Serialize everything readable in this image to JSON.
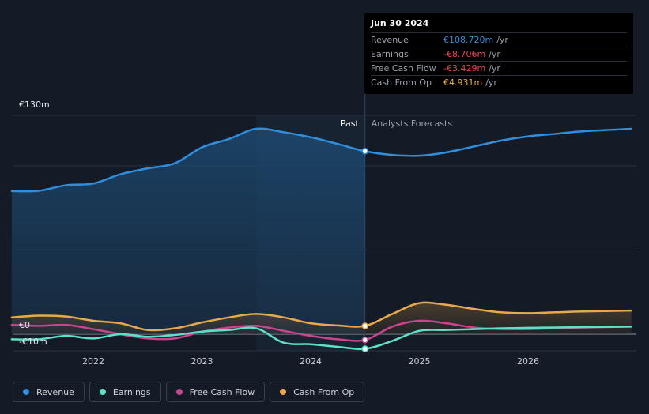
{
  "chart_data": {
    "type": "line",
    "y_unit": "€m",
    "ylim": [
      -10,
      130
    ],
    "y_tick_labels": [
      {
        "value": 130,
        "label": "€130m"
      },
      {
        "value": 0,
        "label": "€0"
      },
      {
        "value": -10,
        "label": "-€10m"
      }
    ],
    "x_tick_labels": [
      {
        "value": 2022.0,
        "label": "2022"
      },
      {
        "value": 2023.0,
        "label": "2023"
      },
      {
        "value": 2024.0,
        "label": "2024"
      },
      {
        "value": 2025.0,
        "label": "2025"
      },
      {
        "value": 2026.0,
        "label": "2026"
      }
    ],
    "xlim": [
      2021.0,
      2026.95
    ],
    "divider_x": 2024.5,
    "highlight_start_x": 2023.5,
    "past_label": "Past",
    "forecast_label": "Analysts Forecasts",
    "series": [
      {
        "name": "Revenue",
        "color": "#2f8fde",
        "points": [
          [
            2021.25,
            85
          ],
          [
            2021.5,
            85.2
          ],
          [
            2021.75,
            88.5
          ],
          [
            2022.0,
            89.5
          ],
          [
            2022.25,
            95
          ],
          [
            2022.5,
            98.5
          ],
          [
            2022.75,
            101.5
          ],
          [
            2023.0,
            111
          ],
          [
            2023.25,
            116
          ],
          [
            2023.5,
            122
          ],
          [
            2023.75,
            120
          ],
          [
            2024.0,
            117
          ],
          [
            2024.25,
            113
          ],
          [
            2024.5,
            108.72
          ],
          [
            2024.75,
            106.5
          ],
          [
            2025.0,
            106
          ],
          [
            2025.25,
            108
          ],
          [
            2025.5,
            111.5
          ],
          [
            2025.75,
            115
          ],
          [
            2026.0,
            117.5
          ],
          [
            2026.25,
            119
          ],
          [
            2026.5,
            120.5
          ],
          [
            2026.95,
            122
          ]
        ]
      },
      {
        "name": "Earnings",
        "color": "#5ee0c8",
        "points": [
          [
            2021.25,
            -3
          ],
          [
            2021.5,
            -3
          ],
          [
            2021.75,
            -1
          ],
          [
            2022.0,
            -2.5
          ],
          [
            2022.25,
            0
          ],
          [
            2022.5,
            -1.5
          ],
          [
            2022.75,
            -0.5
          ],
          [
            2023.0,
            1.5
          ],
          [
            2023.25,
            2.5
          ],
          [
            2023.5,
            3.5
          ],
          [
            2023.75,
            -5
          ],
          [
            2024.0,
            -6
          ],
          [
            2024.25,
            -7.5
          ],
          [
            2024.5,
            -8.706
          ],
          [
            2024.75,
            -4
          ],
          [
            2025.0,
            2
          ],
          [
            2025.25,
            2.5
          ],
          [
            2025.5,
            3
          ],
          [
            2025.75,
            3.5
          ],
          [
            2026.0,
            3.8
          ],
          [
            2026.25,
            4
          ],
          [
            2026.5,
            4.2
          ],
          [
            2026.95,
            4.5
          ]
        ]
      },
      {
        "name": "Free Cash Flow",
        "color": "#c9468f",
        "points": [
          [
            2021.25,
            5.5
          ],
          [
            2021.5,
            5
          ],
          [
            2021.75,
            5.5
          ],
          [
            2022.0,
            3
          ],
          [
            2022.25,
            0
          ],
          [
            2022.5,
            -2.5
          ],
          [
            2022.75,
            -2.5
          ],
          [
            2023.0,
            1.5
          ],
          [
            2023.25,
            4
          ],
          [
            2023.5,
            5
          ],
          [
            2023.75,
            2
          ],
          [
            2024.0,
            -1
          ],
          [
            2024.25,
            -3
          ],
          [
            2024.5,
            -3.429
          ],
          [
            2024.75,
            4.5
          ],
          [
            2025.0,
            8
          ],
          [
            2025.25,
            6.5
          ],
          [
            2025.5,
            4
          ],
          [
            2025.75,
            3
          ],
          [
            2026.0,
            3
          ],
          [
            2026.25,
            3.5
          ],
          [
            2026.5,
            4
          ],
          [
            2026.95,
            4.5
          ]
        ]
      },
      {
        "name": "Cash From Op",
        "color": "#e8a84c",
        "points": [
          [
            2021.25,
            10
          ],
          [
            2021.5,
            11
          ],
          [
            2021.75,
            10.5
          ],
          [
            2022.0,
            8
          ],
          [
            2022.25,
            6.5
          ],
          [
            2022.5,
            2.5
          ],
          [
            2022.75,
            3.5
          ],
          [
            2023.0,
            7
          ],
          [
            2023.25,
            10
          ],
          [
            2023.5,
            12
          ],
          [
            2023.75,
            10
          ],
          [
            2024.0,
            6.5
          ],
          [
            2024.25,
            5.2
          ],
          [
            2024.5,
            4.931
          ],
          [
            2024.75,
            12
          ],
          [
            2025.0,
            18.5
          ],
          [
            2025.25,
            17.5
          ],
          [
            2025.5,
            15
          ],
          [
            2025.75,
            13
          ],
          [
            2026.0,
            12.5
          ],
          [
            2026.25,
            13
          ],
          [
            2026.5,
            13.5
          ],
          [
            2026.95,
            14
          ]
        ]
      }
    ]
  },
  "tooltip": {
    "date": "Jun 30 2024",
    "rows": [
      {
        "label": "Revenue",
        "value": "€108.720m",
        "unit": "/yr",
        "color": "#2f8fde"
      },
      {
        "label": "Earnings",
        "value": "-€8.706m",
        "unit": "/yr",
        "color": "#e8474c"
      },
      {
        "label": "Free Cash Flow",
        "value": "-€3.429m",
        "unit": "/yr",
        "color": "#e8474c"
      },
      {
        "label": "Cash From Op",
        "value": "€4.931m",
        "unit": "/yr",
        "color": "#e8a84c"
      }
    ]
  },
  "legend": [
    {
      "label": "Revenue",
      "color": "#2f8fde"
    },
    {
      "label": "Earnings",
      "color": "#5ee0c8"
    },
    {
      "label": "Free Cash Flow",
      "color": "#c9468f"
    },
    {
      "label": "Cash From Op",
      "color": "#e8a84c"
    }
  ]
}
